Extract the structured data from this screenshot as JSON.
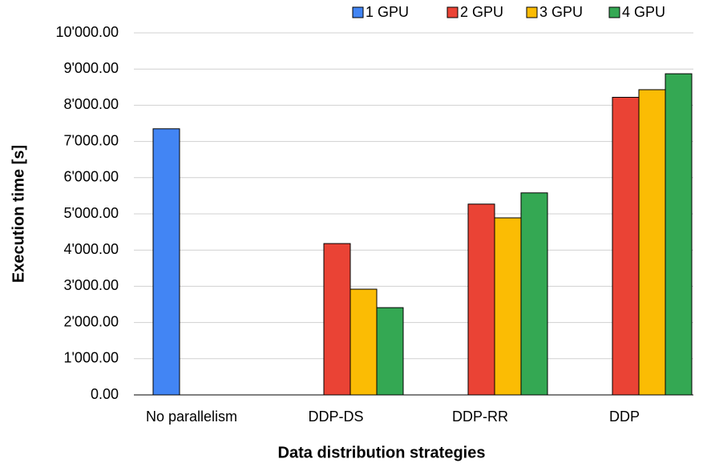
{
  "chart_data": {
    "type": "bar",
    "categories": [
      "No parallelism",
      "DDP-DS",
      "DDP-RR",
      "DDP"
    ],
    "series": [
      {
        "name": "1 GPU",
        "color": "#4285f4",
        "values": [
          7350,
          null,
          null,
          null
        ]
      },
      {
        "name": "2 GPU",
        "color": "#ea4335",
        "values": [
          null,
          4180,
          5270,
          8220
        ]
      },
      {
        "name": "3 GPU",
        "color": "#fbbc04",
        "values": [
          null,
          2920,
          4890,
          8430
        ]
      },
      {
        "name": "4 GPU",
        "color": "#34a853",
        "values": [
          null,
          2410,
          5580,
          8870
        ]
      }
    ],
    "ylim": [
      0,
      10000
    ],
    "yticks": [
      {
        "value": 0,
        "label": "0.00"
      },
      {
        "value": 1000,
        "label": "1'000.00"
      },
      {
        "value": 2000,
        "label": "2'000.00"
      },
      {
        "value": 3000,
        "label": "3'000.00"
      },
      {
        "value": 4000,
        "label": "4'000.00"
      },
      {
        "value": 5000,
        "label": "5'000.00"
      },
      {
        "value": 6000,
        "label": "6'000.00"
      },
      {
        "value": 7000,
        "label": "7'000.00"
      },
      {
        "value": 8000,
        "label": "8'000.00"
      },
      {
        "value": 9000,
        "label": "9'000.00"
      },
      {
        "value": 10000,
        "label": "10'000.00"
      }
    ],
    "xlabel": "Data distribution strategies",
    "ylabel": "Execution time [s]",
    "grid": true,
    "legend": "top-right"
  }
}
